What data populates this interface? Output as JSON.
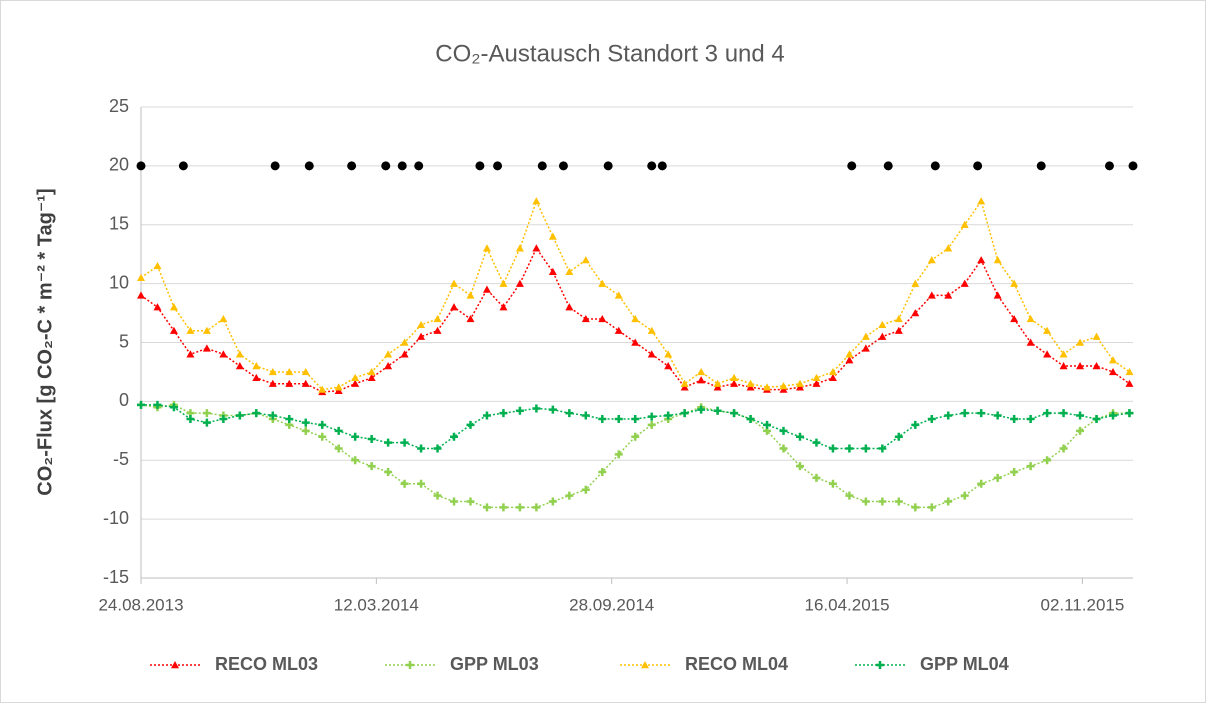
{
  "chart_data": {
    "type": "line",
    "title": "CO₂-Austausch Standort 3 und 4",
    "y_label": "CO₂-Flux [g CO₂-C * m⁻² * Tag⁻¹]",
    "xlim": [
      "24.08.2013",
      "15.12.2015"
    ],
    "xticks": [
      "24.08.2013",
      "12.03.2014",
      "28.09.2014",
      "16.04.2015",
      "02.11.2015"
    ],
    "ylim": [
      -15,
      25
    ],
    "yticks": [
      -15,
      -10,
      -5,
      0,
      5,
      10,
      15,
      20,
      25
    ],
    "grid": true,
    "legend": "bottom",
    "x": [
      "24.08.2013",
      "07.09.2013",
      "21.09.2013",
      "05.10.2013",
      "19.10.2013",
      "02.11.2013",
      "16.11.2013",
      "30.11.2013",
      "14.12.2013",
      "28.12.2013",
      "11.01.2014",
      "25.01.2014",
      "08.02.2014",
      "22.02.2014",
      "08.03.2014",
      "22.03.2014",
      "05.04.2014",
      "19.04.2014",
      "03.05.2014",
      "17.05.2014",
      "31.05.2014",
      "14.06.2014",
      "28.06.2014",
      "12.07.2014",
      "26.07.2014",
      "09.08.2014",
      "23.08.2014",
      "06.09.2014",
      "20.09.2014",
      "04.10.2014",
      "18.10.2014",
      "01.11.2014",
      "15.11.2014",
      "29.11.2014",
      "13.12.2014",
      "27.12.2014",
      "10.01.2015",
      "24.01.2015",
      "07.02.2015",
      "21.02.2015",
      "07.03.2015",
      "21.03.2015",
      "04.04.2015",
      "18.04.2015",
      "02.05.2015",
      "16.05.2015",
      "30.05.2015",
      "13.06.2015",
      "27.06.2015",
      "11.07.2015",
      "25.07.2015",
      "08.08.2015",
      "22.08.2015",
      "05.09.2015",
      "19.09.2015",
      "03.10.2015",
      "17.10.2015",
      "31.10.2015",
      "14.11.2015",
      "28.11.2015",
      "12.12.2015"
    ],
    "series": [
      {
        "name": "RECO ML03",
        "color": "#ff0000",
        "marker": "triangle",
        "values": [
          9,
          8,
          6,
          4,
          4.5,
          4,
          3,
          2,
          1.5,
          1.5,
          1.5,
          0.8,
          0.9,
          1.5,
          2,
          3,
          4,
          5.5,
          6,
          8,
          7,
          9.5,
          8,
          10,
          13,
          11,
          8,
          7,
          7,
          6,
          5,
          4,
          3,
          1.2,
          1.8,
          1.2,
          1.5,
          1.2,
          1,
          1,
          1.2,
          1.5,
          2,
          3.5,
          4.5,
          5.5,
          6,
          7.5,
          9,
          9,
          10,
          12,
          9,
          7,
          5,
          4,
          3,
          3,
          3,
          2.5,
          1.5
        ]
      },
      {
        "name": "GPP ML03",
        "color": "#92d050",
        "marker": "plus",
        "values": [
          -0.3,
          -0.5,
          -0.3,
          -1,
          -1,
          -1.2,
          -1.2,
          -1,
          -1.5,
          -2,
          -2.5,
          -3,
          -4,
          -5,
          -5.5,
          -6,
          -7,
          -7,
          -8,
          -8.5,
          -8.5,
          -9,
          -9,
          -9,
          -9,
          -8.5,
          -8,
          -7.5,
          -6,
          -4.5,
          -3,
          -2,
          -1.5,
          -1,
          -0.5,
          -0.8,
          -1,
          -1.5,
          -2.5,
          -4,
          -5.5,
          -6.5,
          -7,
          -8,
          -8.5,
          -8.5,
          -8.5,
          -9,
          -9,
          -8.5,
          -8,
          -7,
          -6.5,
          -6,
          -5.5,
          -5,
          -4,
          -2.5,
          -1.5,
          -1,
          -1
        ]
      },
      {
        "name": "RECO ML04",
        "color": "#ffc000",
        "marker": "triangle",
        "values": [
          10.5,
          11.5,
          8,
          6,
          6,
          7,
          4,
          3,
          2.5,
          2.5,
          2.5,
          1,
          1.2,
          2,
          2.5,
          4,
          5,
          6.5,
          7,
          10,
          9,
          13,
          10,
          13,
          17,
          14,
          11,
          12,
          10,
          9,
          7,
          6,
          4,
          1.5,
          2.5,
          1.5,
          2,
          1.5,
          1.2,
          1.3,
          1.5,
          2,
          2.5,
          4,
          5.5,
          6.5,
          7,
          10,
          12,
          13,
          15,
          17,
          12,
          10,
          7,
          6,
          4,
          5,
          5.5,
          3.5,
          2.5
        ]
      },
      {
        "name": "GPP ML04",
        "color": "#00b050",
        "marker": "plus",
        "values": [
          -0.3,
          -0.3,
          -0.5,
          -1.5,
          -1.8,
          -1.5,
          -1.2,
          -1,
          -1.2,
          -1.5,
          -1.8,
          -2,
          -2.5,
          -3,
          -3.2,
          -3.5,
          -3.5,
          -4,
          -4,
          -3,
          -2,
          -1.2,
          -1,
          -0.8,
          -0.6,
          -0.7,
          -1,
          -1.2,
          -1.5,
          -1.5,
          -1.5,
          -1.3,
          -1.2,
          -1,
          -0.7,
          -0.8,
          -1,
          -1.5,
          -2,
          -2.5,
          -3,
          -3.5,
          -4,
          -4,
          -4,
          -4,
          -3,
          -2,
          -1.5,
          -1.2,
          -1,
          -1,
          -1.2,
          -1.5,
          -1.5,
          -1,
          -1,
          -1.2,
          -1.5,
          -1.2,
          -1
        ]
      }
    ],
    "markers": {
      "color": "#000000",
      "x": [
        "24.08.2013",
        "29.09.2013",
        "16.12.2013",
        "14.01.2014",
        "19.02.2014",
        "20.03.2014",
        "03.04.2014",
        "17.04.2014",
        "08.06.2014",
        "23.06.2014",
        "31.07.2014",
        "18.08.2014",
        "25.09.2014",
        "01.11.2014",
        "10.11.2014",
        "20.04.2015",
        "21.05.2015",
        "30.06.2015",
        "05.08.2015",
        "28.09.2015",
        "25.11.2015",
        "15.12.2015"
      ],
      "values": [
        20,
        20,
        20,
        20,
        20,
        20,
        20,
        20,
        20,
        20,
        20,
        20,
        20,
        20,
        20,
        20,
        20,
        20,
        20,
        20,
        20,
        20
      ]
    }
  }
}
